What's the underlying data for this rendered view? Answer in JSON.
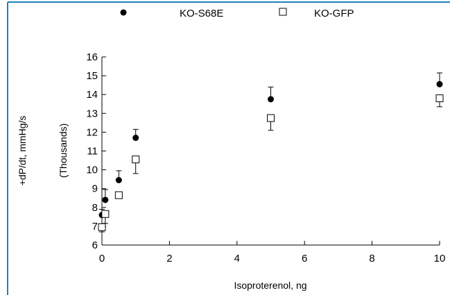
{
  "chart_data": {
    "type": "scatter",
    "title": "",
    "xlabel": "Isoproterenol,  ng",
    "ylabel": "+dP/dt,  mmHg/s",
    "ylabel_secondary": "(Thousands)",
    "xlim": [
      0,
      10
    ],
    "ylim": [
      6,
      16
    ],
    "x_ticks": [
      "0",
      "2",
      "4",
      "6",
      "8",
      "10"
    ],
    "y_ticks": [
      "6",
      "7",
      "8",
      "9",
      "10",
      "11",
      "12",
      "13",
      "14",
      "15",
      "16"
    ],
    "grid": false,
    "legend_position": "top",
    "series": [
      {
        "name": "KO-S68E",
        "marker": "filled-circle",
        "color": "#000000",
        "points": [
          {
            "x": 0,
            "y": 7.6,
            "err": 0.3,
            "err_dir": "up"
          },
          {
            "x": 0.1,
            "y": 8.4,
            "err": 0.55,
            "err_dir": "up"
          },
          {
            "x": 0.5,
            "y": 9.45,
            "err": 0.5,
            "err_dir": "up"
          },
          {
            "x": 1,
            "y": 11.7,
            "err": 0.45,
            "err_dir": "up"
          },
          {
            "x": 5,
            "y": 13.75,
            "err": 0.65,
            "err_dir": "up"
          },
          {
            "x": 10,
            "y": 14.55,
            "err": 0.6,
            "err_dir": "up"
          }
        ]
      },
      {
        "name": "KO-GFP",
        "marker": "open-square",
        "color": "#000000",
        "points": [
          {
            "x": 0,
            "y": 6.95,
            "err": 0.25,
            "err_dir": "down"
          },
          {
            "x": 0.1,
            "y": 7.65,
            "err": 0.5,
            "err_dir": "down"
          },
          {
            "x": 0.5,
            "y": 8.65,
            "err": 0.15,
            "err_dir": "down"
          },
          {
            "x": 1,
            "y": 10.55,
            "err": 0.75,
            "err_dir": "down"
          },
          {
            "x": 5,
            "y": 12.75,
            "err": 0.65,
            "err_dir": "down"
          },
          {
            "x": 10,
            "y": 13.8,
            "err": 0.45,
            "err_dir": "down"
          }
        ]
      }
    ]
  },
  "frame_color": "#1c7fbf"
}
